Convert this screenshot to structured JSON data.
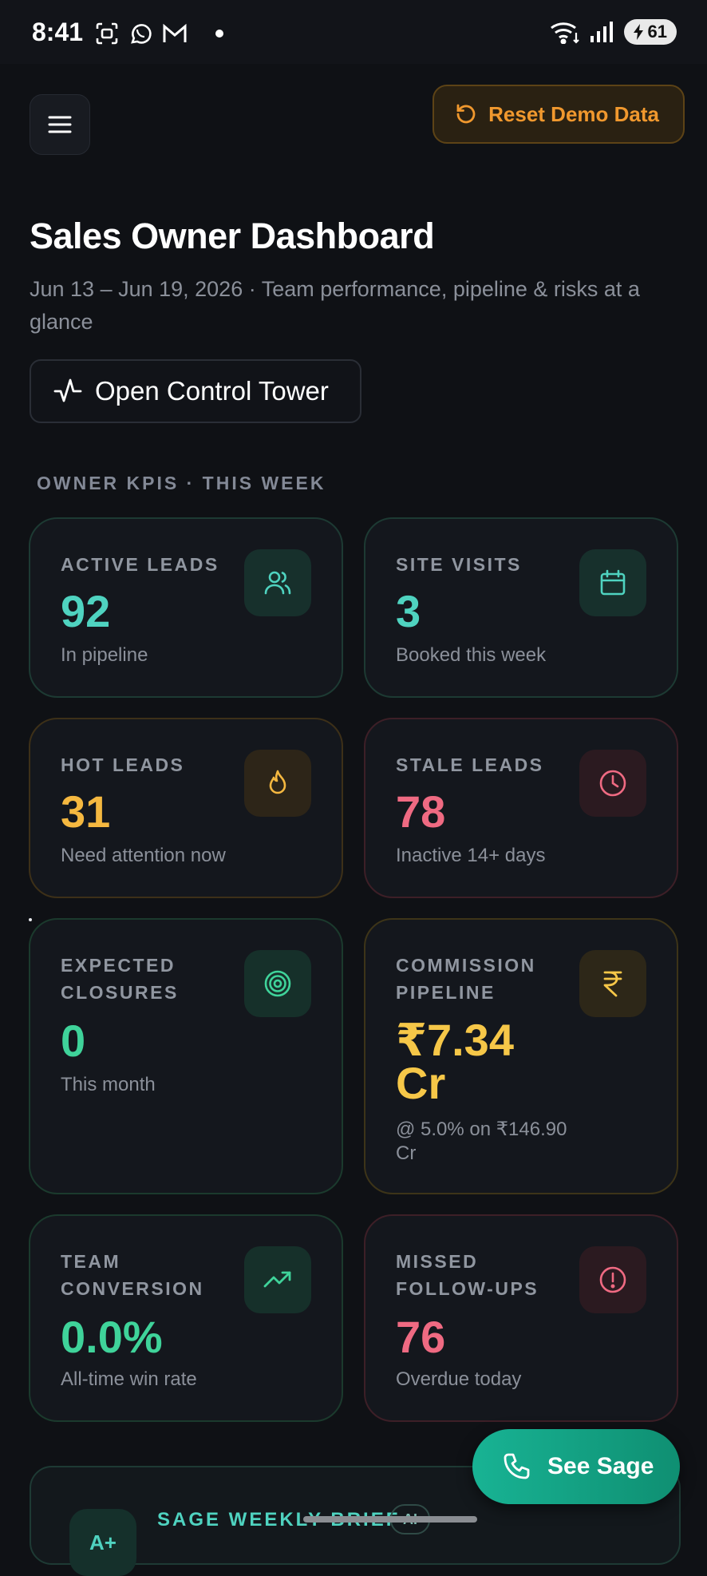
{
  "status_bar": {
    "time": "8:41",
    "battery": "61"
  },
  "header": {
    "reset_label": "Reset Demo Data"
  },
  "page": {
    "title": "Sales Owner Dashboard",
    "subtitle": "Jun 13 – Jun 19, 2026 · Team performance, pipeline & risks at a glance",
    "control_tower_label": "Open Control Tower",
    "section_label": "OWNER KPIS · THIS WEEK"
  },
  "kpis": [
    {
      "label": "ACTIVE LEADS",
      "value": "92",
      "sub": "In pipeline",
      "icon": "users-icon",
      "color": "#4fd3c0"
    },
    {
      "label": "SITE VISITS",
      "value": "3",
      "sub": "Booked this week",
      "icon": "calendar-icon",
      "color": "#4fd3c0"
    },
    {
      "label": "HOT LEADS",
      "value": "31",
      "sub": "Need attention now",
      "icon": "flame-icon",
      "color": "#f5b840"
    },
    {
      "label": "STALE LEADS",
      "value": "78",
      "sub": "Inactive 14+ days",
      "icon": "clock-icon",
      "color": "#ef6a82"
    },
    {
      "label": "EXPECTED CLOSURES",
      "value": "0",
      "sub": "This month",
      "icon": "target-icon",
      "color": "#3fd39a"
    },
    {
      "label": "COMMISSION PIPELINE",
      "value": "₹7.34 Cr",
      "sub": "@ 5.0% on ₹146.90 Cr",
      "icon": "rupee-icon",
      "color": "#f6c748"
    },
    {
      "label": "TEAM CONVERSION",
      "value": "0.0%",
      "sub": "All-time win rate",
      "icon": "trending-up-icon",
      "color": "#3fd39a"
    },
    {
      "label": "MISSED FOLLOW-UPS",
      "value": "76",
      "sub": "Overdue today",
      "icon": "alert-circle-icon",
      "color": "#ef6a82"
    }
  ],
  "sage": {
    "brief_label": "SAGE WEEKLY BRIEF",
    "badge": "AI",
    "icon_text": "A+",
    "fab_label": "See Sage"
  }
}
